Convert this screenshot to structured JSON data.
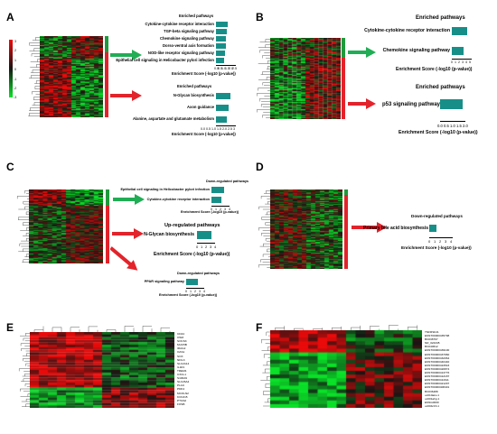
{
  "panels": {
    "A": {
      "letter": "A",
      "scale_ticks": [
        "3",
        "2",
        "1",
        "0",
        "-1",
        "-2",
        "-3"
      ],
      "up": {
        "title": "Enriched pathways",
        "items": [
          {
            "label": "Cytokine-cytokine receptor interaction",
            "value": 1.9
          },
          {
            "label": "TGF-beta signaling pathway",
            "value": 1.7
          },
          {
            "label": "Chemokine signaling pathway",
            "value": 1.6
          },
          {
            "label": "Dorso-ventral axis formation",
            "value": 1.5
          },
          {
            "label": "NOD-like receptor signaling pathway",
            "value": 1.4
          },
          {
            "label": "Epithelial cell signaling in Helicobacter pylori infection",
            "value": 1.3
          }
        ],
        "ticks": [
          "0.0",
          "0.5",
          "1.0",
          "1.5",
          "2.0",
          "2.5"
        ],
        "xlabel": "Enrichment Score (-log10 (p-value))"
      },
      "down": {
        "title": "Enriched pathways",
        "items": [
          {
            "label": "N-Glycan biosynthesis",
            "value": 2.6
          },
          {
            "label": "Axon guidance",
            "value": 2.3
          },
          {
            "label": "Alanine, aspartate and glutamate metabolism",
            "value": 2.0
          }
        ],
        "ticks": [
          "0.0",
          "0.5",
          "1.0",
          "1.5",
          "2.0",
          "2.5",
          "3"
        ],
        "xlabel": "Enrichment Score (-log10 (p-value))"
      }
    },
    "B": {
      "letter": "B",
      "up": {
        "title": "Enriched pathways",
        "items": [
          {
            "label": "Cytokine-cytokine receptor interaction",
            "value": 4.2
          },
          {
            "label": "Chemokine signaling pathway",
            "value": 3.3
          }
        ],
        "ticks": [
          "0",
          "1",
          "2",
          "3",
          "4",
          "5"
        ],
        "xlabel": "Enrichment Score (-log10 (p-value))"
      },
      "down": {
        "title": "Enriched pathways",
        "items": [
          {
            "label": "p53 signaling pathway",
            "value": 1.8
          }
        ],
        "ticks": [
          "0.0",
          "0.5",
          "1.0",
          "1.5",
          "2.0"
        ],
        "xlabel": "Enrichment Score (-log10 (p-value))"
      }
    },
    "C": {
      "letter": "C",
      "down1": {
        "title": "Down-regulated pathways",
        "items": [
          {
            "label": "Epithelial cell signaling in Helicobacter pylori infection",
            "value": 2.7
          },
          {
            "label": "Cytokine-cytokine receptor interaction",
            "value": 2.1
          }
        ],
        "ticks": [
          "0",
          "1",
          "2",
          "3",
          "4"
        ],
        "xlabel": "Enrichment Score (-log10 (p-value))"
      },
      "up": {
        "title": "Up-regulated pathways",
        "items": [
          {
            "label": "N-Glycan biosynthesis",
            "value": 3.1
          }
        ],
        "ticks": [
          "0",
          "1",
          "2",
          "3",
          "4"
        ],
        "xlabel": "Enrichment Score (-log10 (p-value))"
      },
      "down2": {
        "title": "Down-regulated pathways",
        "items": [
          {
            "label": "PPAR signaling pathway",
            "value": 2.6
          }
        ],
        "ticks": [
          "0",
          "1",
          "2",
          "3",
          "4"
        ],
        "xlabel": "Enrichment Score (-log10 (p-value))"
      }
    },
    "D": {
      "letter": "D",
      "down": {
        "title": "Down-regulated pathways",
        "items": [
          {
            "label": "Primary bile acid biosynthesis",
            "value": 1.3
          }
        ],
        "ticks": [
          "0",
          "1",
          "2",
          "3",
          "4"
        ],
        "xlabel": "Enrichment Score (-log10 (p-value))"
      }
    },
    "E": {
      "letter": "E",
      "genes": [
        "CD44",
        "OSM",
        "SOCS3",
        "MUC5B",
        "IRAG2",
        "OAS1",
        "SOX",
        "NFIL3",
        "SLC2A14",
        "IL1R1",
        "TREM1",
        "CXCL1",
        "S100A9",
        "SLC26A4",
        "PLAU",
        "PDK4",
        "MCOLN2",
        "KCNJ15",
        "PTGS2",
        "FOSB",
        "SCNN1B",
        "PIGR",
        "MMP9",
        "TNFRSF10C",
        "CEACAM6",
        "LCN2",
        "ITGB3",
        "CYP4F3",
        "RGS1",
        "IL17B"
      ]
    },
    "F": {
      "letter": "F",
      "genes": [
        "TNFRSF21",
        "ENST00000435798",
        "BC038797",
        "NR_024345",
        "BC040612",
        "ENST00000439100",
        "ENST00000437960",
        "ENST00000432064",
        "ENST00000440440",
        "ENST00000424543",
        "ENST00000420874",
        "ENST00000413776",
        "ENST00000412187",
        "ENST00000411611",
        "ENST00000421297",
        "ENST00000408401",
        "BC036488",
        "uc010ako.1",
        "uc001ahg.1",
        "ENSG0000",
        "uc004cbh.1"
      ]
    }
  },
  "colors": {
    "bar": "#178f88",
    "green_arrow": "#21ad55",
    "red_arrow": "#e3232b",
    "heat_red": "#e0211f",
    "heat_green": "#1fbf2e"
  }
}
